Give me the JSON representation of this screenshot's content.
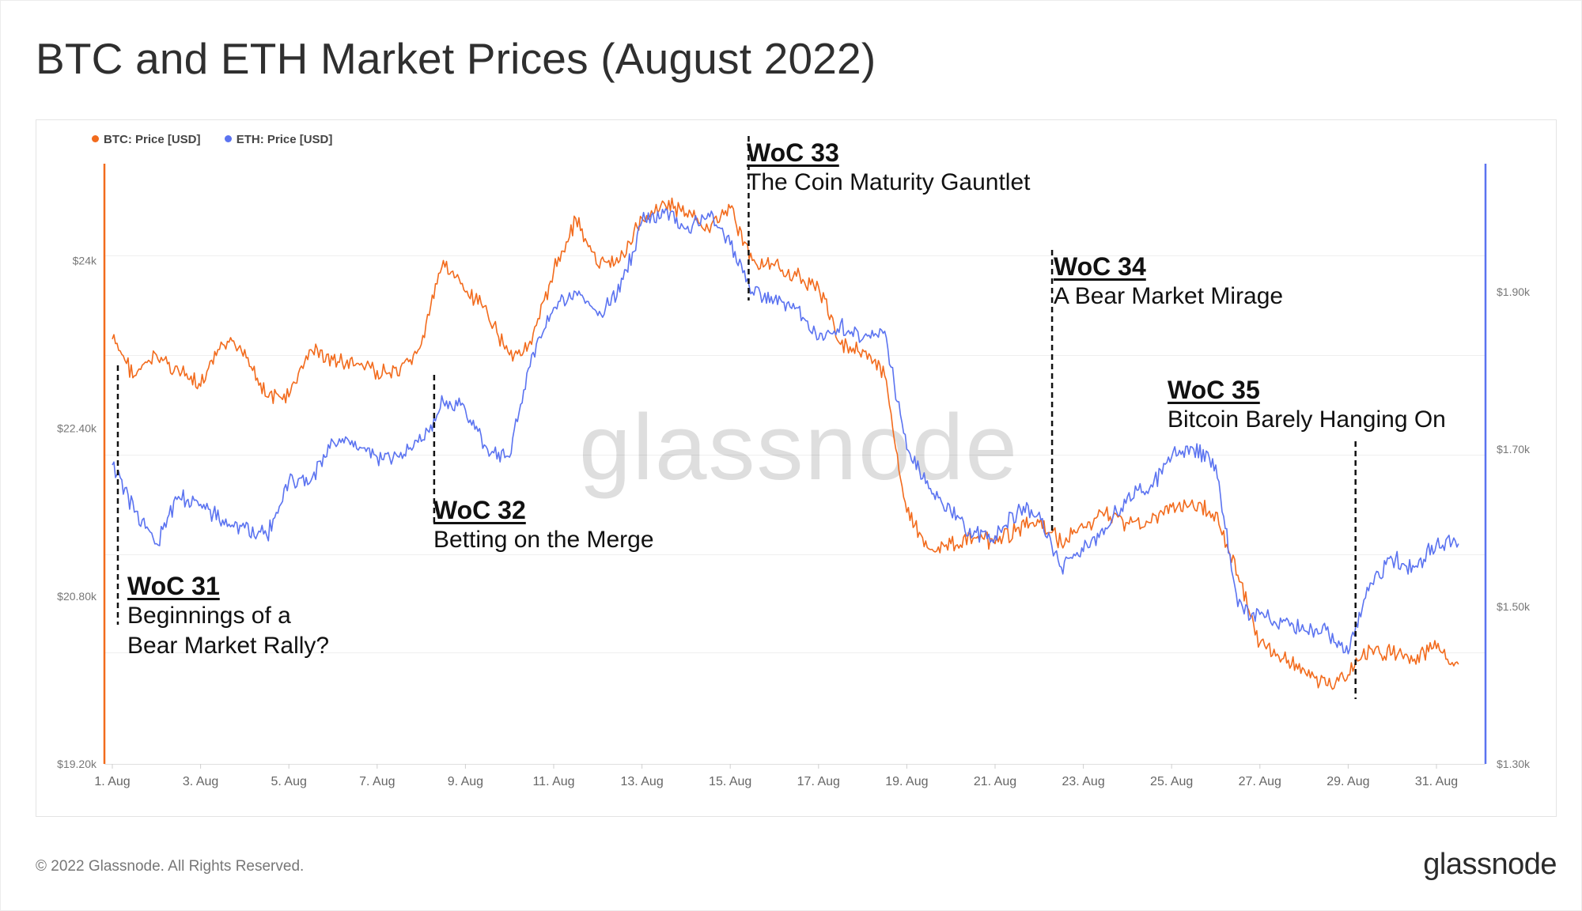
{
  "title": "BTC and ETH Market Prices (August 2022)",
  "footer": {
    "copyright": "© 2022 Glassnode. All Rights Reserved.",
    "logo": "glassnode"
  },
  "watermark": "glassnode",
  "chart_data": {
    "type": "line",
    "legend": [
      {
        "name": "BTC: Price [USD]",
        "color": "#f26b1d"
      },
      {
        "name": "ETH: Price [USD]",
        "color": "#5b73f0"
      }
    ],
    "legend_position": "top-left",
    "x_ticks": [
      "1. Aug",
      "3. Aug",
      "5. Aug",
      "7. Aug",
      "9. Aug",
      "11. Aug",
      "13. Aug",
      "15. Aug",
      "17. Aug",
      "19. Aug",
      "21. Aug",
      "23. Aug",
      "25. Aug",
      "27. Aug",
      "29. Aug",
      "31. Aug"
    ],
    "x_range": [
      "2022-08-01",
      "2022-08-31"
    ],
    "y_left": {
      "ticks": [
        "$19.20k",
        "$20.80k",
        "$22.40k",
        "$24k"
      ],
      "range": [
        19200,
        24900
      ]
    },
    "y_right": {
      "ticks": [
        "$1.30k",
        "$1.50k",
        "$1.70k",
        "$1.90k"
      ],
      "range": [
        1300,
        2060
      ]
    },
    "grid": true,
    "series": [
      {
        "name": "BTC: Price [USD]",
        "axis": "left",
        "color": "#f26b1d",
        "x": [
          "2022-08-01",
          "2022-08-01T12:00",
          "2022-08-02",
          "2022-08-02T12:00",
          "2022-08-03",
          "2022-08-03T12:00",
          "2022-08-04",
          "2022-08-04T12:00",
          "2022-08-05",
          "2022-08-05T12:00",
          "2022-08-06",
          "2022-08-06T12:00",
          "2022-08-07",
          "2022-08-07T12:00",
          "2022-08-08",
          "2022-08-08T12:00",
          "2022-08-09",
          "2022-08-09T12:00",
          "2022-08-10",
          "2022-08-10T12:00",
          "2022-08-11",
          "2022-08-11T12:00",
          "2022-08-12",
          "2022-08-12T12:00",
          "2022-08-13",
          "2022-08-13T12:00",
          "2022-08-14",
          "2022-08-14T12:00",
          "2022-08-15",
          "2022-08-15T12:00",
          "2022-08-16",
          "2022-08-16T12:00",
          "2022-08-17",
          "2022-08-17T12:00",
          "2022-08-18",
          "2022-08-18T12:00",
          "2022-08-19",
          "2022-08-19T12:00",
          "2022-08-20",
          "2022-08-20T12:00",
          "2022-08-21",
          "2022-08-21T12:00",
          "2022-08-22",
          "2022-08-22T12:00",
          "2022-08-23",
          "2022-08-23T12:00",
          "2022-08-24",
          "2022-08-24T12:00",
          "2022-08-25",
          "2022-08-25T12:00",
          "2022-08-26",
          "2022-08-26T12:00",
          "2022-08-27",
          "2022-08-27T12:00",
          "2022-08-28",
          "2022-08-28T12:00",
          "2022-08-29",
          "2022-08-29T12:00",
          "2022-08-30",
          "2022-08-30T12:00",
          "2022-08-31",
          "2022-08-31T12:00"
        ],
        "values": [
          23250,
          22900,
          23100,
          22950,
          22800,
          23200,
          23150,
          22700,
          22700,
          23150,
          23050,
          23000,
          22950,
          22900,
          23200,
          24000,
          23700,
          23500,
          23100,
          23200,
          23900,
          24400,
          23950,
          24000,
          24400,
          24550,
          24450,
          24300,
          24500,
          24000,
          23950,
          23850,
          23750,
          23200,
          23150,
          22900,
          21600,
          21250,
          21300,
          21350,
          21300,
          21450,
          21500,
          21300,
          21450,
          21600,
          21500,
          21500,
          21650,
          21650,
          21600,
          21000,
          20350,
          20200,
          20100,
          19950,
          20050,
          20300,
          20250,
          20200,
          20300,
          20150
        ]
      },
      {
        "name": "ETH: Price [USD]",
        "axis": "right",
        "color": "#5b73f0",
        "x": [
          "2022-08-01",
          "2022-08-01T12:00",
          "2022-08-02",
          "2022-08-02T12:00",
          "2022-08-03",
          "2022-08-03T12:00",
          "2022-08-04",
          "2022-08-04T12:00",
          "2022-08-05",
          "2022-08-05T12:00",
          "2022-08-06",
          "2022-08-06T12:00",
          "2022-08-07",
          "2022-08-07T12:00",
          "2022-08-08",
          "2022-08-08T12:00",
          "2022-08-09",
          "2022-08-09T12:00",
          "2022-08-10",
          "2022-08-10T12:00",
          "2022-08-11",
          "2022-08-11T12:00",
          "2022-08-12",
          "2022-08-12T12:00",
          "2022-08-13",
          "2022-08-13T12:00",
          "2022-08-14",
          "2022-08-14T12:00",
          "2022-08-15",
          "2022-08-15T12:00",
          "2022-08-16",
          "2022-08-16T12:00",
          "2022-08-17",
          "2022-08-17T12:00",
          "2022-08-18",
          "2022-08-18T12:00",
          "2022-08-19",
          "2022-08-19T12:00",
          "2022-08-20",
          "2022-08-20T12:00",
          "2022-08-21",
          "2022-08-21T12:00",
          "2022-08-22",
          "2022-08-22T12:00",
          "2022-08-23",
          "2022-08-23T12:00",
          "2022-08-24",
          "2022-08-24T12:00",
          "2022-08-25",
          "2022-08-25T12:00",
          "2022-08-26",
          "2022-08-26T12:00",
          "2022-08-27",
          "2022-08-27T12:00",
          "2022-08-28",
          "2022-08-28T12:00",
          "2022-08-29",
          "2022-08-29T12:00",
          "2022-08-30",
          "2022-08-30T12:00",
          "2022-08-31",
          "2022-08-31T12:00"
        ],
        "values": [
          1680,
          1620,
          1580,
          1640,
          1630,
          1610,
          1600,
          1590,
          1660,
          1660,
          1710,
          1710,
          1690,
          1690,
          1710,
          1760,
          1750,
          1700,
          1690,
          1820,
          1880,
          1900,
          1870,
          1900,
          1990,
          2000,
          1980,
          2000,
          1960,
          1900,
          1890,
          1880,
          1840,
          1860,
          1840,
          1850,
          1700,
          1650,
          1620,
          1590,
          1590,
          1620,
          1620,
          1550,
          1570,
          1600,
          1640,
          1650,
          1690,
          1700,
          1680,
          1500,
          1490,
          1480,
          1470,
          1470,
          1440,
          1530,
          1560,
          1550,
          1580,
          1580
        ]
      }
    ],
    "annotations": [
      {
        "label": "WoC 31",
        "text": [
          "Beginnings of a",
          "Bear Market Rally?"
        ],
        "x": "2022-08-01T03:00"
      },
      {
        "label": "WoC 32",
        "text": [
          "Betting on the Merge"
        ],
        "x": "2022-08-08T07:00"
      },
      {
        "label": "WoC 33",
        "text": [
          "The Coin Maturity Gauntlet"
        ],
        "x": "2022-08-15T10:00"
      },
      {
        "label": "WoC 34",
        "text": [
          "A Bear Market Mirage"
        ],
        "x": "2022-08-22T07:00"
      },
      {
        "label": "WoC 35",
        "text": [
          "Bitcoin Barely Hanging On"
        ],
        "x": "2022-08-29T04:00"
      }
    ]
  }
}
